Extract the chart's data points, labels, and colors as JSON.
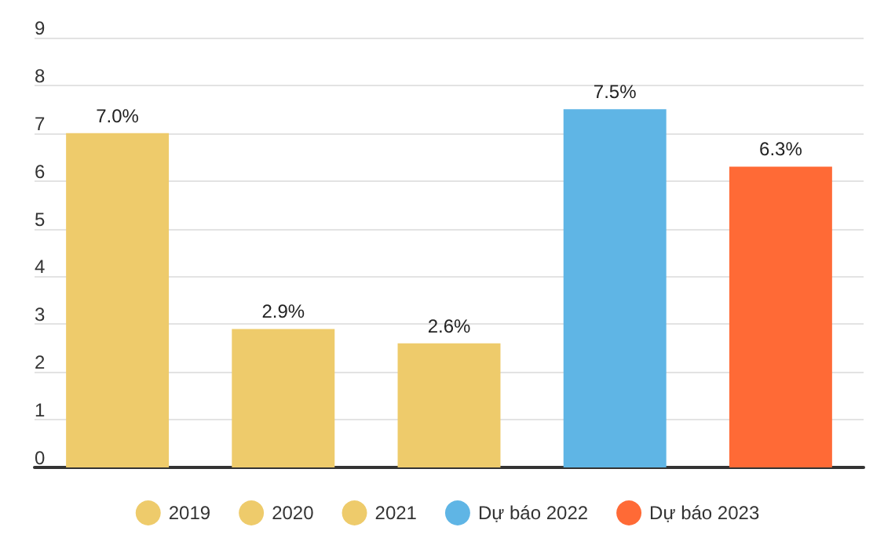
{
  "chart_data": {
    "type": "bar",
    "categories": [
      null,
      null,
      null,
      null,
      null
    ],
    "series": [
      {
        "name": "2019",
        "color": "#eecb6b",
        "values": [
          7.0,
          null,
          null,
          null,
          null
        ],
        "value_labels": [
          "7.0%",
          null,
          null,
          null,
          null
        ]
      },
      {
        "name": "2020",
        "color": "#eecb6b",
        "values": [
          null,
          2.9,
          null,
          null,
          null
        ],
        "value_labels": [
          null,
          "2.9%",
          null,
          null,
          null
        ]
      },
      {
        "name": "2021",
        "color": "#eecb6b",
        "values": [
          null,
          null,
          2.6,
          null,
          null
        ],
        "value_labels": [
          null,
          null,
          "2.6%",
          null,
          null
        ]
      },
      {
        "name": "Dự báo 2022",
        "color": "#5fb5e5",
        "values": [
          null,
          null,
          null,
          7.5,
          null
        ],
        "value_labels": [
          null,
          null,
          null,
          "7.5%",
          null
        ]
      },
      {
        "name": "Dự báo 2023",
        "color": "#ff6a36",
        "values": [
          null,
          null,
          null,
          null,
          6.3
        ],
        "value_labels": [
          null,
          null,
          null,
          null,
          "6.3%"
        ]
      }
    ],
    "ylim": [
      0,
      9
    ],
    "yticks": [
      0,
      1,
      2,
      3,
      4,
      5,
      6,
      7,
      8,
      9
    ],
    "grid": "y",
    "legend": "bottom"
  }
}
